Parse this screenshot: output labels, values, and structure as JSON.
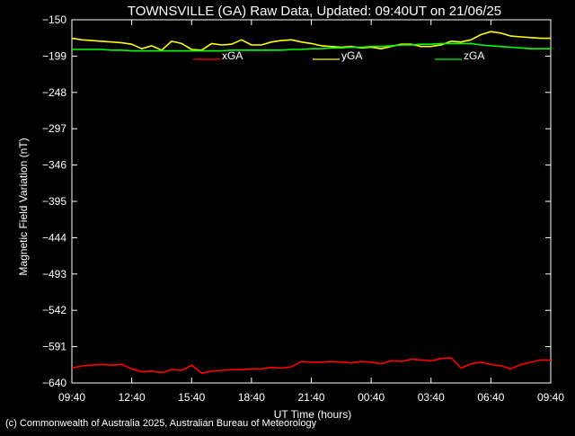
{
  "chart_data": {
    "type": "line",
    "title": "TOWNSVILLE (GA) Raw Data, Updated: 09:40UT on 21/06/25",
    "xlabel": "UT Time (hours)",
    "ylabel": "Magnetic Field Variation (nT)",
    "ylim": [
      -640,
      -150
    ],
    "y_ticks": [
      -150,
      -199,
      -248,
      -297,
      -346,
      -395,
      -444,
      -493,
      -542,
      -591,
      -640
    ],
    "y_tick_labels": [
      "−150",
      "−199",
      "−248",
      "−297",
      "−346",
      "−395",
      "−444",
      "−493",
      "−542",
      "−591",
      "−640"
    ],
    "xlim": [
      0,
      24
    ],
    "x_ticks": [
      0,
      3,
      6,
      9,
      12,
      15,
      18,
      21,
      24
    ],
    "x_tick_labels": [
      "09:40",
      "12:40",
      "15:40",
      "18:40",
      "21:40",
      "00:40",
      "03:40",
      "06:40",
      "09:40"
    ],
    "grid": false,
    "legend_position": "top-center",
    "series": [
      {
        "name": "xGA",
        "color": "#ff0000",
        "x": [
          0,
          0.5,
          1,
          1.5,
          2,
          2.5,
          3,
          3.5,
          4,
          4.5,
          5,
          5.5,
          6,
          6.5,
          7,
          7.5,
          8,
          8.5,
          9,
          9.5,
          10,
          10.5,
          11,
          11.5,
          12,
          12.5,
          13,
          13.5,
          14,
          14.5,
          15,
          15.5,
          16,
          16.5,
          17,
          17.5,
          18,
          18.5,
          19,
          19.5,
          20,
          20.5,
          21,
          21.5,
          22,
          22.5,
          23,
          23.5,
          24
        ],
        "values": [
          -620,
          -617,
          -616,
          -615,
          -616,
          -615,
          -621,
          -625,
          -624,
          -626,
          -622,
          -623,
          -616,
          -627,
          -624,
          -623,
          -622,
          -622,
          -621,
          -621,
          -619,
          -620,
          -618,
          -611,
          -612,
          -612,
          -611,
          -612,
          -613,
          -611,
          -612,
          -614,
          -610,
          -611,
          -608,
          -609,
          -610,
          -607,
          -606,
          -620,
          -614,
          -612,
          -615,
          -617,
          -621,
          -615,
          -612,
          -609,
          -609
        ]
      },
      {
        "name": "yGA",
        "color": "#ffff00",
        "x": [
          0,
          0.5,
          1,
          1.5,
          2,
          2.5,
          3,
          3.5,
          4,
          4.5,
          5,
          5.5,
          6,
          6.5,
          7,
          7.5,
          8,
          8.5,
          9,
          9.5,
          10,
          10.5,
          11,
          11.5,
          12,
          12.5,
          13,
          13.5,
          14,
          14.5,
          15,
          15.5,
          16,
          16.5,
          17,
          17.5,
          18,
          18.5,
          19,
          19.5,
          20,
          20.5,
          21,
          21.5,
          22,
          22.5,
          23,
          23.5,
          24
        ],
        "values": [
          -175,
          -177,
          -178,
          -179,
          -180,
          -181,
          -183,
          -189,
          -185,
          -191,
          -179,
          -182,
          -190,
          -191,
          -182,
          -184,
          -183,
          -177,
          -184,
          -184,
          -180,
          -178,
          -177,
          -180,
          -182,
          -185,
          -186,
          -187,
          -186,
          -188,
          -187,
          -189,
          -186,
          -183,
          -183,
          -186,
          -186,
          -184,
          -179,
          -180,
          -177,
          -170,
          -166,
          -168,
          -172,
          -173,
          -174,
          -175,
          -175
        ]
      },
      {
        "name": "zGA",
        "color": "#00ff00",
        "x": [
          0,
          0.5,
          1,
          1.5,
          2,
          2.5,
          3,
          3.5,
          4,
          4.5,
          5,
          5.5,
          6,
          6.5,
          7,
          7.5,
          8,
          8.5,
          9,
          9.5,
          10,
          10.5,
          11,
          11.5,
          12,
          12.5,
          13,
          13.5,
          14,
          14.5,
          15,
          15.5,
          16,
          16.5,
          17,
          17.5,
          18,
          18.5,
          19,
          19.5,
          20,
          20.5,
          21,
          21.5,
          22,
          22.5,
          23,
          23.5,
          24
        ],
        "values": [
          -190,
          -190,
          -190,
          -190,
          -191,
          -191,
          -192,
          -192,
          -192,
          -192,
          -192,
          -192,
          -192,
          -192,
          -192,
          -192,
          -191,
          -191,
          -191,
          -191,
          -191,
          -191,
          -190,
          -190,
          -189,
          -189,
          -188,
          -188,
          -187,
          -187,
          -186,
          -186,
          -185,
          -184,
          -184,
          -183,
          -183,
          -182,
          -182,
          -182,
          -182,
          -184,
          -185,
          -186,
          -187,
          -188,
          -189,
          -189,
          -189
        ]
      }
    ]
  },
  "footer": {
    "copyright": "(c) Commonwealth of Australia 2025, Australian Bureau of Meteorology"
  },
  "colors": {
    "background": "#000000",
    "axes": "#ffffff",
    "text": "#ffffff"
  }
}
